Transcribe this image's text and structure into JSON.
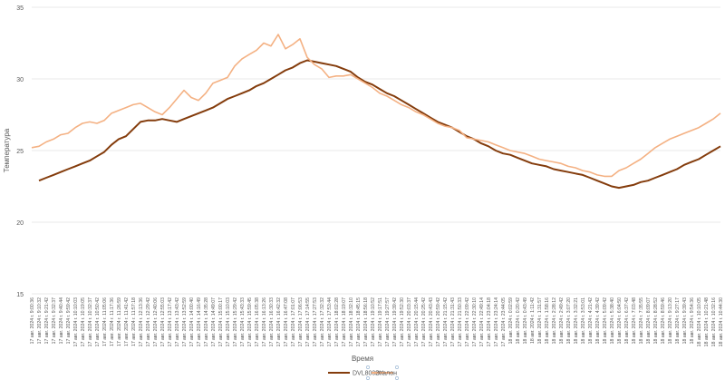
{
  "chart_data": {
    "type": "line",
    "y_label": "Температура",
    "x_label": "Время",
    "categories": [
      "17 авг. 2024 г. 9:00:36",
      "17 авг. 2024 г. 9:10:32",
      "17 авг. 2024 г. 9:21:42",
      "17 авг. 2024 г. 9:32:37",
      "17 авг. 2024 г. 9:40:44",
      "17 авг. 2024 г. 9:59:42",
      "17 авг. 2024 г. 10:10:03",
      "17 авг. 2024 г. 10:19:05",
      "17 авг. 2024 г. 10:32:37",
      "17 авг. 2024 г. 10:50:42",
      "17 авг. 2024 г. 11:05:06",
      "17 авг. 2024 г. 11:17:36",
      "17 авг. 2024 г. 11:26:59",
      "17 авг. 2024 г. 11:41:42",
      "17 авг. 2024 г. 11:57:18",
      "17 авг. 2024 г. 12:13:36",
      "17 авг. 2024 г. 12:29:42",
      "17 авг. 2024 г. 12:40:06",
      "17 авг. 2024 г. 12:55:03",
      "17 авг. 2024 г. 13:17:42",
      "17 авг. 2024 г. 13:43:42",
      "17 авг. 2024 г. 13:52:59",
      "17 авг. 2024 г. 14:00:40",
      "17 авг. 2024 г. 14:16:49",
      "17 авг. 2024 г. 14:35:28",
      "17 авг. 2024 г. 14:49:07",
      "17 авг. 2024 г. 15:00:17",
      "17 авг. 2024 г. 15:10:03",
      "17 авг. 2024 г. 15:29:42",
      "17 авг. 2024 г. 15:43:33",
      "17 авг. 2024 г. 15:59:45",
      "17 авг. 2024 г. 16:05:38",
      "17 авг. 2024 г. 16:13:26",
      "17 авг. 2024 г. 16:30:33",
      "17 авг. 2024 г. 16:42:32",
      "17 авг. 2024 г. 16:47:08",
      "17 авг. 2024 г. 17:01:07",
      "17 авг. 2024 г. 17:06:53",
      "17 авг. 2024 г. 17:14:55",
      "17 авг. 2024 г. 17:27:53",
      "17 авг. 2024 г. 17:32:32",
      "17 авг. 2024 г. 17:53:44",
      "17 авг. 2024 г. 18:02:28",
      "17 авг. 2024 г. 18:19:07",
      "17 авг. 2024 г. 18:32:10",
      "17 авг. 2024 г. 18:45:15",
      "17 авг. 2024 г. 18:56:18",
      "17 авг. 2024 г. 19:10:52",
      "17 авг. 2024 г. 19:17:51",
      "17 авг. 2024 г. 19:27:57",
      "17 авг. 2024 г. 19:39:42",
      "17 авг. 2024 г. 19:52:30",
      "17 авг. 2024 г. 20:03:37",
      "17 авг. 2024 г. 20:15:44",
      "17 авг. 2024 г. 20:25:42",
      "17 авг. 2024 г. 20:43:43",
      "17 авг. 2024 г. 20:59:42",
      "17 авг. 2024 г. 21:15:42",
      "17 авг. 2024 г. 21:31:43",
      "17 авг. 2024 г. 21:50:33",
      "17 авг. 2024 г. 22:09:42",
      "17 авг. 2024 г. 22:30:10",
      "17 авг. 2024 г. 22:49:14",
      "17 авг. 2024 г. 23:04:18",
      "17 авг. 2024 г. 23:24:14",
      "17 авг. 2024 г. 23:44:05",
      "18 авг. 2024 г. 0:02:59",
      "18 авг. 2024 г. 0:20:42",
      "18 авг. 2024 г. 0:43:49",
      "18 авг. 2024 г. 1:11:42",
      "18 авг. 2024 г. 1:31:57",
      "18 авг. 2024 г. 1:58:16",
      "18 авг. 2024 г. 2:28:12",
      "18 авг. 2024 г. 2:49:42",
      "18 авг. 2024 г. 3:07:20",
      "18 авг. 2024 г. 3:32:21",
      "18 авг. 2024 г. 3:53:01",
      "18 авг. 2024 г. 4:21:42",
      "18 авг. 2024 г. 4:39:42",
      "18 авг. 2024 г. 5:09:42",
      "18 авг. 2024 г. 5:38:40",
      "18 авг. 2024 г. 6:04:50",
      "18 авг. 2024 г. 6:37:42",
      "18 авг. 2024 г. 7:03:48",
      "18 авг. 2024 г. 7:35:55",
      "18 авг. 2024 г. 8:09:07",
      "18 авг. 2024 г. 8:28:52",
      "18 авг. 2024 г. 8:59:46",
      "18 авг. 2024 г. 9:13:20",
      "18 авг. 2024 г. 9:27:17",
      "18 авг. 2024 г. 9:39:43",
      "18 авг. 2024 г. 9:54:36",
      "18 авг. 2024 г. 10:10:05",
      "18 авг. 2024 г. 10:21:48",
      "18 авг. 2024 г. 10:32:16",
      "18 авг. 2024 г. 10:44:30"
    ],
    "series": [
      {
        "name": "DVL8002H",
        "color": "#843c0c",
        "values": [
          null,
          22.9,
          23.1,
          23.3,
          23.5,
          23.7,
          23.9,
          24.1,
          24.3,
          24.6,
          24.9,
          25.4,
          25.8,
          26.0,
          26.5,
          27.0,
          27.1,
          27.1,
          27.2,
          27.1,
          27.0,
          27.2,
          27.4,
          27.6,
          27.8,
          28.0,
          28.3,
          28.6,
          28.8,
          29.0,
          29.2,
          29.5,
          29.7,
          30.0,
          30.3,
          30.6,
          30.8,
          31.1,
          31.3,
          31.2,
          31.1,
          31.0,
          30.9,
          30.7,
          30.5,
          30.1,
          29.8,
          29.6,
          29.3,
          29.0,
          28.8,
          28.5,
          28.2,
          27.9,
          27.6,
          27.3,
          27.0,
          26.8,
          26.6,
          26.3,
          26.0,
          25.8,
          25.5,
          25.3,
          25.0,
          24.8,
          24.7,
          24.5,
          24.3,
          24.1,
          24.0,
          23.9,
          23.7,
          23.6,
          23.5,
          23.4,
          23.3,
          23.1,
          22.9,
          22.7,
          22.5,
          22.4,
          22.5,
          22.6,
          22.8,
          22.9,
          23.1,
          23.3,
          23.5,
          23.7,
          24.0,
          24.2,
          24.4,
          24.7,
          25.0,
          25.3
        ]
      },
      {
        "name": "Эталон",
        "color": "#f4b183",
        "values": [
          25.2,
          25.3,
          25.6,
          25.8,
          26.1,
          26.2,
          26.6,
          26.9,
          27.0,
          26.9,
          27.1,
          27.6,
          27.8,
          28.0,
          28.2,
          28.3,
          28.0,
          27.7,
          27.5,
          28.0,
          28.6,
          29.2,
          28.7,
          28.5,
          29.0,
          29.7,
          29.9,
          30.1,
          30.9,
          31.4,
          31.7,
          32.0,
          32.5,
          32.3,
          33.1,
          32.1,
          32.4,
          32.8,
          31.5,
          31.0,
          30.7,
          30.1,
          30.2,
          30.2,
          30.3,
          30.0,
          29.7,
          29.4,
          29.0,
          28.8,
          28.5,
          28.2,
          28.0,
          27.7,
          27.5,
          27.2,
          26.9,
          26.7,
          26.6,
          26.4,
          25.9,
          25.8,
          25.7,
          25.6,
          25.4,
          25.2,
          25.0,
          24.9,
          24.8,
          24.6,
          24.4,
          24.3,
          24.2,
          24.1,
          23.9,
          23.8,
          23.6,
          23.5,
          23.3,
          23.2,
          23.2,
          23.6,
          23.8,
          24.1,
          24.4,
          24.8,
          25.2,
          25.5,
          25.8,
          26.0,
          26.2,
          26.4,
          26.6,
          26.9,
          27.2,
          27.6
        ]
      }
    ],
    "ylim": [
      15,
      35
    ],
    "yticks": [
      15,
      20,
      25,
      30,
      35
    ],
    "grid": true
  }
}
